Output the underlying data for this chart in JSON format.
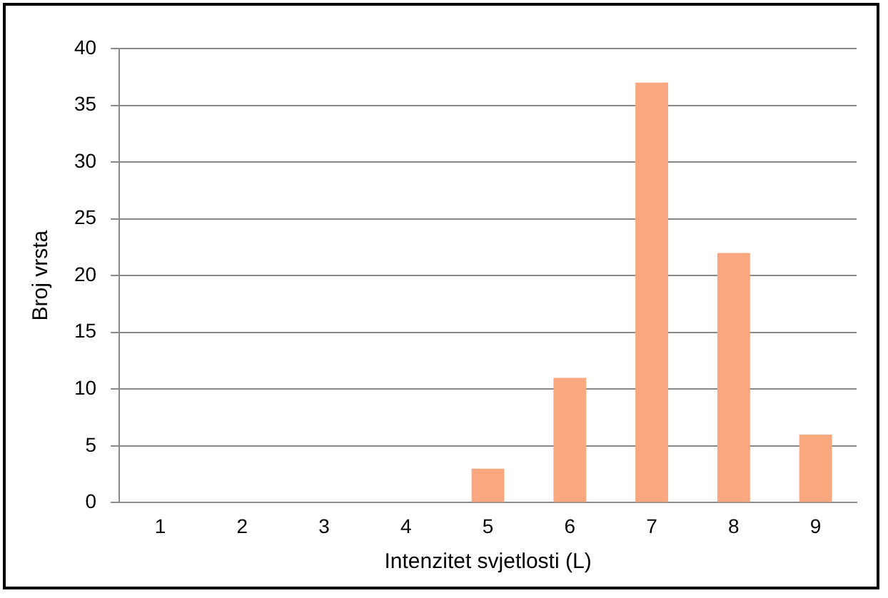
{
  "chart_data": {
    "type": "bar",
    "xlabel": "Intenzitet svjetlosti (L)",
    "ylabel": "Broj vrsta",
    "categories": [
      "1",
      "2",
      "3",
      "4",
      "5",
      "6",
      "7",
      "8",
      "9"
    ],
    "values": [
      0,
      0,
      0,
      0,
      3,
      11,
      37,
      22,
      6
    ],
    "color": "#f9a77e",
    "ylim": [
      0,
      40
    ],
    "yticks": [
      0,
      5,
      10,
      15,
      20,
      25,
      30,
      35,
      40
    ],
    "grid": "y",
    "legend": false
  }
}
